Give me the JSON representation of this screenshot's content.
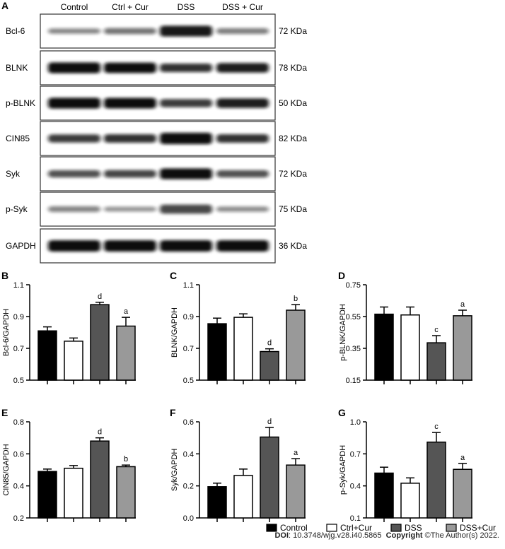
{
  "panel_a": {
    "letter": "A",
    "lanes": [
      "Control",
      "Ctrl + Cur",
      "DSS",
      "DSS + Cur"
    ],
    "blots": [
      {
        "protein": "Bcl-6",
        "size": "72 KDa",
        "bands": [
          0.35,
          0.45,
          0.95,
          0.4
        ]
      },
      {
        "protein": "BLNK",
        "size": "78 KDa",
        "bands": [
          0.95,
          0.9,
          0.7,
          0.8
        ]
      },
      {
        "protein": "p-BLNK",
        "size": "50 KDa",
        "bands": [
          0.95,
          0.92,
          0.65,
          0.8
        ]
      },
      {
        "protein": "CIN85",
        "size": "82 KDa",
        "bands": [
          0.65,
          0.7,
          1.0,
          0.7
        ]
      },
      {
        "protein": "Syk",
        "size": "72 KDa",
        "bands": [
          0.55,
          0.6,
          0.95,
          0.55
        ]
      },
      {
        "protein": "p-Syk",
        "size": "75 KDa",
        "bands": [
          0.4,
          0.3,
          0.75,
          0.35
        ]
      },
      {
        "protein": "GAPDH",
        "size": "36 KDa",
        "bands": [
          1.0,
          1.0,
          1.0,
          1.0
        ]
      }
    ]
  },
  "legend": [
    {
      "label": "Control",
      "fill": "#000000"
    },
    {
      "label": "Ctrl+Cur",
      "fill": "#ffffff"
    },
    {
      "label": "DSS",
      "fill": "#555555"
    },
    {
      "label": "DSS+Cur",
      "fill": "#999999"
    }
  ],
  "caption": {
    "doi_label": "DOI",
    "doi": ": 10.3748/wjg.v28.i40.5865",
    "copyright_label": "Copyright",
    "copyright": " ©The Author(s) 2022."
  },
  "chart_data": [
    {
      "panel": "B",
      "type": "bar",
      "categories": [
        "Control",
        "Ctrl+Cur",
        "DSS",
        "DSS+Cur"
      ],
      "values": [
        0.81,
        0.745,
        0.975,
        0.84
      ],
      "errors": [
        0.025,
        0.02,
        0.015,
        0.055
      ],
      "significance": [
        "",
        "",
        "d",
        "a"
      ],
      "ylabel": "Bcl-6/GAPDH",
      "ylim": [
        0.5,
        1.1
      ],
      "yticks": [
        0.5,
        0.7,
        0.9,
        1.1
      ],
      "yticklabels": [
        "0.5",
        "0.7",
        "0.9",
        "1.1"
      ]
    },
    {
      "panel": "C",
      "type": "bar",
      "categories": [
        "Control",
        "Ctrl+Cur",
        "DSS",
        "DSS+Cur"
      ],
      "values": [
        0.855,
        0.895,
        0.68,
        0.94
      ],
      "errors": [
        0.035,
        0.022,
        0.017,
        0.035
      ],
      "significance": [
        "",
        "",
        "d",
        "b"
      ],
      "ylabel": "BLNK/GAPDH",
      "ylim": [
        0.5,
        1.1
      ],
      "yticks": [
        0.5,
        0.7,
        0.9,
        1.1
      ],
      "yticklabels": [
        "0.5",
        "0.7",
        "0.9",
        "1.1"
      ]
    },
    {
      "panel": "D",
      "type": "bar",
      "categories": [
        "Control",
        "Ctrl+Cur",
        "DSS",
        "DSS+Cur"
      ],
      "values": [
        0.565,
        0.56,
        0.385,
        0.555
      ],
      "errors": [
        0.045,
        0.05,
        0.045,
        0.035
      ],
      "significance": [
        "",
        "",
        "c",
        "a"
      ],
      "ylabel": "p-BLNK/GAPDH",
      "ylim": [
        0.15,
        0.75
      ],
      "yticks": [
        0.15,
        0.35,
        0.55,
        0.75
      ],
      "yticklabels": [
        "0.15",
        "0.35",
        "0.55",
        "0.75"
      ]
    },
    {
      "panel": "E",
      "type": "bar",
      "categories": [
        "Control",
        "Ctrl+Cur",
        "DSS",
        "DSS+Cur"
      ],
      "values": [
        0.49,
        0.51,
        0.68,
        0.52
      ],
      "errors": [
        0.015,
        0.017,
        0.02,
        0.01
      ],
      "significance": [
        "",
        "",
        "d",
        "b"
      ],
      "ylabel": "CIN85/GAPDH",
      "ylim": [
        0.2,
        0.8
      ],
      "yticks": [
        0.2,
        0.4,
        0.6,
        0.8
      ],
      "yticklabels": [
        "0.2",
        "0.4",
        "0.6",
        "0.8"
      ]
    },
    {
      "panel": "F",
      "type": "bar",
      "categories": [
        "Control",
        "Ctrl+Cur",
        "DSS",
        "DSS+Cur"
      ],
      "values": [
        0.195,
        0.265,
        0.505,
        0.33
      ],
      "errors": [
        0.022,
        0.04,
        0.06,
        0.04
      ],
      "significance": [
        "",
        "",
        "d",
        "a"
      ],
      "ylabel": "Syk/GAPDH",
      "ylim": [
        0.0,
        0.6
      ],
      "yticks": [
        0.0,
        0.2,
        0.4,
        0.6
      ],
      "yticklabels": [
        "0.0",
        "0.2",
        "0.4",
        "0.6"
      ]
    },
    {
      "panel": "G",
      "type": "bar",
      "categories": [
        "Control",
        "Ctrl+Cur",
        "DSS",
        "DSS+Cur"
      ],
      "values": [
        0.52,
        0.425,
        0.81,
        0.555
      ],
      "errors": [
        0.055,
        0.05,
        0.09,
        0.055
      ],
      "significance": [
        "",
        "",
        "c",
        "a"
      ],
      "ylabel": "p-Syk/GAPDH",
      "ylim": [
        0.1,
        1.0
      ],
      "yticks": [
        0.1,
        0.4,
        0.7,
        1.0
      ],
      "yticklabels": [
        "0.1",
        "0.4",
        "0.7",
        "1.0"
      ]
    }
  ]
}
